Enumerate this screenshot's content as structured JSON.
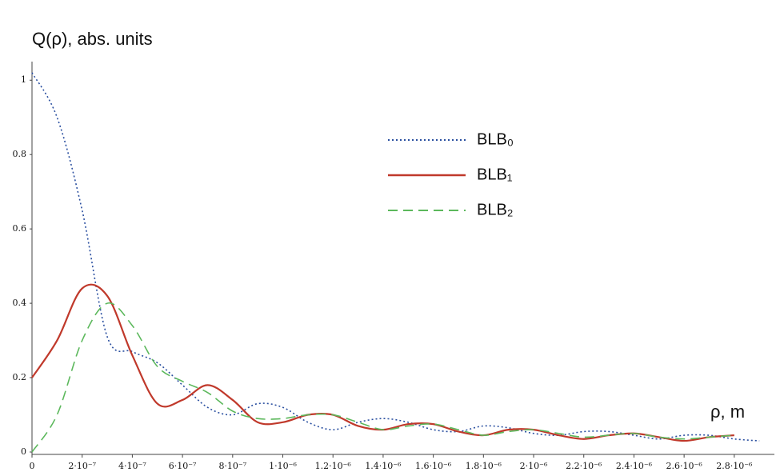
{
  "chart_data": {
    "type": "line",
    "title": "Q(ρ), abs. units",
    "x_label": "ρ, m",
    "x": [
      0,
      1e-07,
      2e-07,
      3e-07,
      4e-07,
      5e-07,
      6e-07,
      7e-07,
      8e-07,
      9e-07,
      1e-06,
      1.1e-06,
      1.2e-06,
      1.3e-06,
      1.4e-06,
      1.5e-06,
      1.6e-06,
      1.7e-06,
      1.8e-06,
      1.9e-06,
      2e-06,
      2.1e-06,
      2.2e-06,
      2.3e-06,
      2.4e-06,
      2.5e-06,
      2.6e-06,
      2.7e-06,
      2.8e-06,
      2.9e-06
    ],
    "series": [
      {
        "name": "BLB₀",
        "color": "#2a4fa0",
        "dash": "2,3",
        "values": [
          1.02,
          0.9,
          0.65,
          0.31,
          0.27,
          0.24,
          0.18,
          0.12,
          0.1,
          0.13,
          0.12,
          0.08,
          0.06,
          0.08,
          0.09,
          0.08,
          0.06,
          0.055,
          0.07,
          0.065,
          0.05,
          0.045,
          0.055,
          0.055,
          0.045,
          0.035,
          0.045,
          0.045,
          0.035,
          0.03
        ]
      },
      {
        "name": "BLB₁",
        "color": "#c0392b",
        "dash": "none",
        "values": [
          0.2,
          0.3,
          0.44,
          0.42,
          0.26,
          0.13,
          0.14,
          0.18,
          0.14,
          0.08,
          0.08,
          0.1,
          0.1,
          0.07,
          0.06,
          0.075,
          0.075,
          0.055,
          0.045,
          0.06,
          0.06,
          0.045,
          0.035,
          0.045,
          0.05,
          0.04,
          0.03,
          0.04,
          0.045,
          null
        ]
      },
      {
        "name": "BLB₂",
        "color": "#5cb85c",
        "dash": "12,7",
        "values": [
          0,
          0.1,
          0.3,
          0.4,
          0.34,
          0.23,
          0.19,
          0.16,
          0.11,
          0.09,
          0.09,
          0.1,
          0.1,
          0.08,
          0.06,
          0.07,
          0.075,
          0.06,
          0.045,
          0.055,
          0.06,
          0.05,
          0.04,
          0.045,
          0.05,
          0.04,
          0.035,
          0.04,
          0.045,
          null
        ]
      }
    ],
    "xlim": [
      0,
      2.96e-06
    ],
    "ylim": [
      0,
      1.05
    ],
    "xticks": [
      0,
      {
        "value": 2e-07,
        "label": "2·10⁻⁷"
      },
      {
        "value": 4e-07,
        "label": "4·10⁻⁷"
      },
      {
        "value": 6e-07,
        "label": "6·10⁻⁷"
      },
      {
        "value": 8e-07,
        "label": "8·10⁻⁷"
      },
      {
        "value": 1e-06,
        "label": "1·10⁻⁶"
      },
      {
        "value": 1.2e-06,
        "label": "1.2·10⁻⁶"
      },
      {
        "value": 1.4e-06,
        "label": "1.4·10⁻⁶"
      },
      {
        "value": 1.6e-06,
        "label": "1.6·10⁻⁶"
      },
      {
        "value": 1.8e-06,
        "label": "1.8·10⁻⁶"
      },
      {
        "value": 2e-06,
        "label": "2·10⁻⁶"
      },
      {
        "value": 2.2e-06,
        "label": "2.2·10⁻⁶"
      },
      {
        "value": 2.4e-06,
        "label": "2.4·10⁻⁶"
      },
      {
        "value": 2.6e-06,
        "label": "2.6·10⁻⁶"
      },
      {
        "value": 2.8e-06,
        "label": "2.8·10⁻⁶"
      }
    ],
    "yticks": [
      0,
      0.2,
      0.4,
      0.6,
      0.8,
      1
    ]
  }
}
